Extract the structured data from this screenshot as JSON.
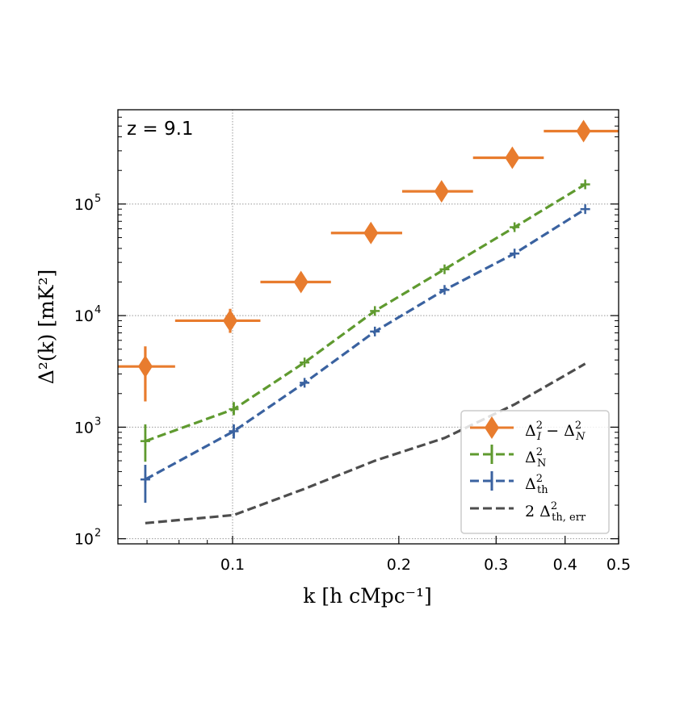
{
  "chart_data": {
    "type": "scatter",
    "annotation": "z = 9.1",
    "xlabel": "k [h cMpc⁻¹]",
    "ylabel": "Δ²(k) [mK²]",
    "xscale": "log",
    "yscale": "log",
    "xlim": [
      0.062,
      0.5
    ],
    "ylim": [
      90,
      700000
    ],
    "xticks": [
      0.1,
      0.2,
      0.3,
      0.4,
      0.5
    ],
    "xtick_labels": [
      "0.1",
      "0.2",
      "0.3",
      "0.4",
      "0.5"
    ],
    "yticks": [
      100,
      1000,
      10000,
      100000
    ],
    "ytick_labels": [
      "10",
      "10",
      "10",
      "10"
    ],
    "ytick_exponents": [
      "2",
      "3",
      "4",
      "5"
    ],
    "grid": true,
    "legend_position": "lower-right",
    "series": [
      {
        "name": "Δ_I² − Δ_N²",
        "legend_main": "Δ",
        "legend_sup": "2",
        "legend_sub": "I",
        "legend_mid": " − Δ",
        "legend_sup2": "2",
        "legend_sub2": "N",
        "style": "diamond-errorbar",
        "color": "#e87c2e",
        "points": [
          {
            "x": 0.0695,
            "xlo": 0.0615,
            "xhi": 0.0787,
            "y": 3500,
            "ylo": 1700,
            "yhi": 5300
          },
          {
            "x": 0.099,
            "xlo": 0.0787,
            "xhi": 0.1123,
            "y": 9000,
            "ylo": 7000,
            "yhi": 11500
          },
          {
            "x": 0.133,
            "xlo": 0.1123,
            "xhi": 0.1507,
            "y": 20000,
            "ylo": 20000,
            "yhi": 20000
          },
          {
            "x": 0.178,
            "xlo": 0.1507,
            "xhi": 0.2028,
            "y": 55000,
            "ylo": 55000,
            "yhi": 55000
          },
          {
            "x": 0.239,
            "xlo": 0.2028,
            "xhi": 0.2725,
            "y": 130000,
            "ylo": 130000,
            "yhi": 130000
          },
          {
            "x": 0.321,
            "xlo": 0.2725,
            "xhi": 0.366,
            "y": 260000,
            "ylo": 260000,
            "yhi": 260000
          },
          {
            "x": 0.432,
            "xlo": 0.366,
            "xhi": 0.5,
            "y": 450000,
            "ylo": 450000,
            "yhi": 450000
          }
        ]
      },
      {
        "name": "Δ_N²",
        "legend_main": "Δ",
        "legend_sup": "2",
        "legend_sub": "N",
        "style": "dashed-errorbar",
        "color": "#5f9a2f",
        "points": [
          {
            "x": 0.0695,
            "y": 750,
            "ylo": 490,
            "yhi": 1060
          },
          {
            "x": 0.1005,
            "y": 1450,
            "ylo": 1280,
            "yhi": 1680
          },
          {
            "x": 0.135,
            "y": 3800,
            "ylo": 3800,
            "yhi": 3800
          },
          {
            "x": 0.181,
            "y": 11000,
            "ylo": 11000,
            "yhi": 11000
          },
          {
            "x": 0.242,
            "y": 26000,
            "ylo": 26000,
            "yhi": 26000
          },
          {
            "x": 0.324,
            "y": 62000,
            "ylo": 62000,
            "yhi": 62000
          },
          {
            "x": 0.435,
            "y": 150000,
            "ylo": 150000,
            "yhi": 150000
          }
        ]
      },
      {
        "name": "Δ_th²",
        "legend_main": "Δ",
        "legend_sup": "2",
        "legend_sub": "th",
        "style": "dashed-errorbar",
        "color": "#3a62a0",
        "points": [
          {
            "x": 0.0695,
            "y": 340,
            "ylo": 210,
            "yhi": 460
          },
          {
            "x": 0.1005,
            "y": 920,
            "ylo": 790,
            "yhi": 1060
          },
          {
            "x": 0.135,
            "y": 2500,
            "ylo": 2500,
            "yhi": 2500
          },
          {
            "x": 0.181,
            "y": 7200,
            "ylo": 7200,
            "yhi": 7200
          },
          {
            "x": 0.242,
            "y": 17000,
            "ylo": 17000,
            "yhi": 17000
          },
          {
            "x": 0.324,
            "y": 36000,
            "ylo": 36000,
            "yhi": 36000
          },
          {
            "x": 0.435,
            "y": 90000,
            "ylo": 90000,
            "yhi": 90000
          }
        ]
      },
      {
        "name": "2 Δ_th,err²",
        "legend_main": "2 Δ",
        "legend_sup": "2",
        "legend_sub": "th, err",
        "style": "dashed",
        "color": "#4d4d4d",
        "points": [
          {
            "x": 0.0695,
            "y": 138
          },
          {
            "x": 0.1005,
            "y": 163
          },
          {
            "x": 0.135,
            "y": 280
          },
          {
            "x": 0.181,
            "y": 500
          },
          {
            "x": 0.242,
            "y": 800
          },
          {
            "x": 0.324,
            "y": 1600
          },
          {
            "x": 0.435,
            "y": 3700
          }
        ]
      }
    ]
  }
}
